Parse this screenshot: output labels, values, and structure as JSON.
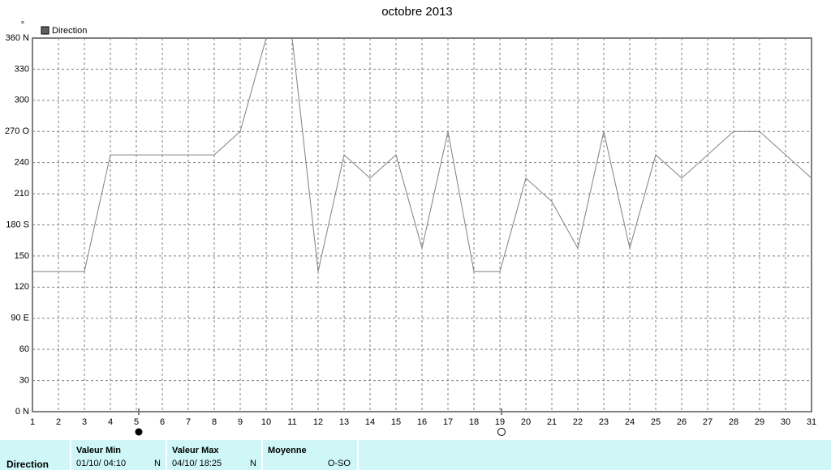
{
  "chart_data": {
    "type": "line",
    "title": "octobre 2013",
    "y_axis_label": "°",
    "x": [
      1,
      2,
      3,
      4,
      5,
      6,
      7,
      8,
      9,
      10,
      11,
      12,
      13,
      14,
      15,
      16,
      17,
      18,
      19,
      20,
      21,
      22,
      23,
      24,
      25,
      26,
      27,
      28,
      29,
      30,
      31
    ],
    "series": [
      {
        "name": "Direction",
        "color": "#808080",
        "values": [
          135,
          135,
          135,
          247.5,
          247.5,
          247.5,
          247.5,
          247.5,
          270,
          360,
          360,
          135,
          247.5,
          225,
          247.5,
          157.5,
          270,
          135,
          135,
          225,
          202.5,
          157.5,
          270,
          157.5,
          247.5,
          225,
          247.5,
          270,
          270,
          247.5,
          225
        ]
      }
    ],
    "xlim": [
      1,
      31
    ],
    "xticks": [
      1,
      2,
      3,
      4,
      5,
      6,
      7,
      8,
      9,
      10,
      11,
      12,
      13,
      14,
      15,
      16,
      17,
      18,
      19,
      20,
      21,
      22,
      23,
      24,
      25,
      26,
      27,
      28,
      29,
      30,
      31
    ],
    "ylim": [
      0,
      360
    ],
    "yticks": [
      {
        "value": 0,
        "label": "0  N"
      },
      30,
      60,
      {
        "value": 90,
        "label": "90  E"
      },
      120,
      150,
      {
        "value": 180,
        "label": "180 S"
      },
      210,
      240,
      {
        "value": 270,
        "label": "270 O"
      },
      300,
      330,
      {
        "value": 360,
        "label": "360 N"
      }
    ],
    "grid": true,
    "legend": "top-left"
  },
  "summary": {
    "label": "Direction",
    "columns": [
      {
        "title": "Valeur Min",
        "date": "01/10/ 04:10",
        "direction": "N"
      },
      {
        "title": "Valeur Max",
        "date": "04/10/ 18:25",
        "direction": "N"
      },
      {
        "title": "Moyenne",
        "value": "O-SO"
      }
    ]
  }
}
